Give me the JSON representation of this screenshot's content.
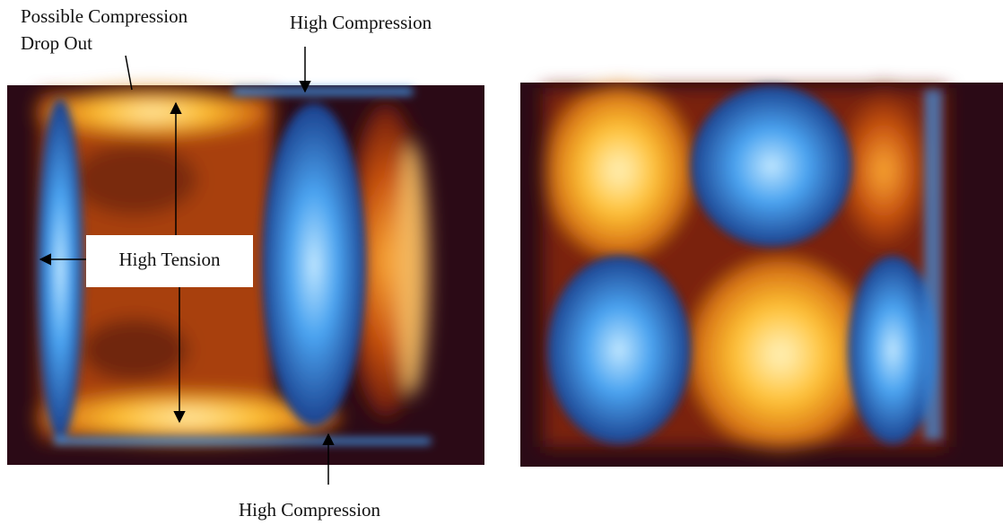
{
  "annotations": {
    "top_left": [
      "Possible Compression",
      "Drop Out"
    ],
    "top_right": "High Compression",
    "center": "High Tension",
    "bottom": "High Compression"
  }
}
